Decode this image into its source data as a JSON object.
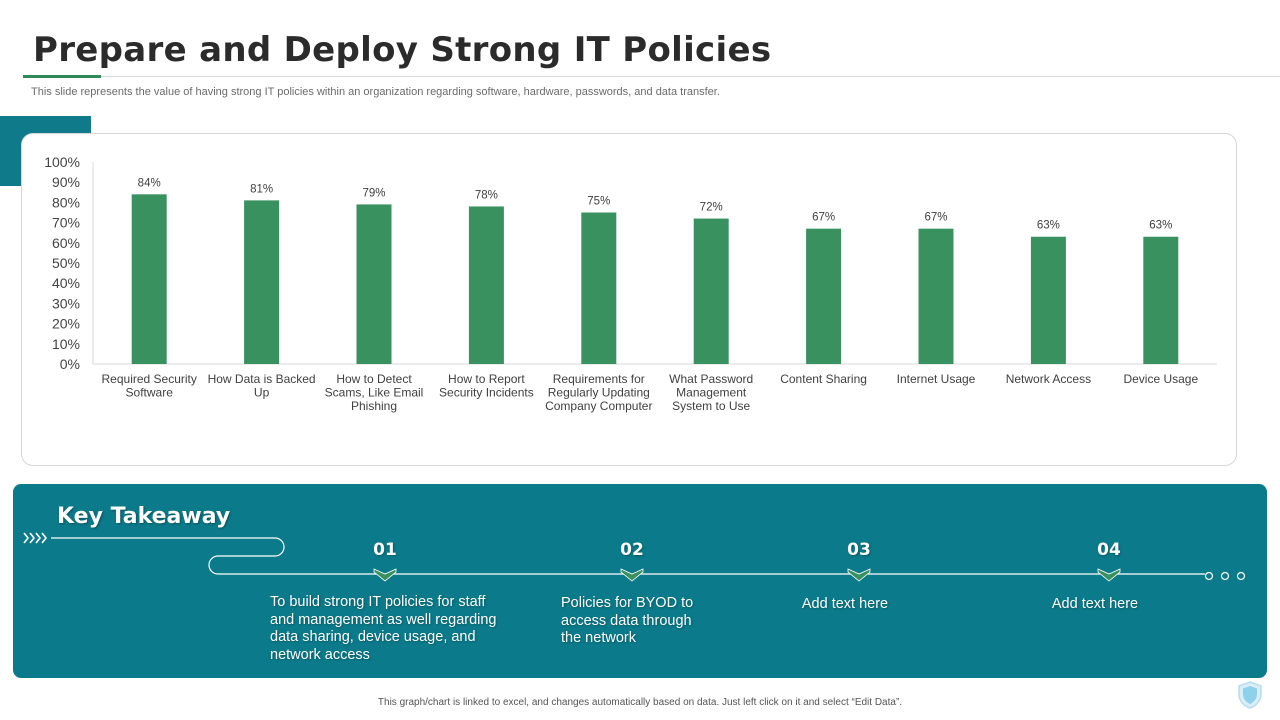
{
  "header": {
    "title": "Prepare and Deploy Strong IT Policies",
    "subtitle": "This slide represents the value of having strong IT policies within an organization regarding software, hardware, passwords, and data transfer."
  },
  "chart_data": {
    "type": "bar",
    "title": "",
    "xlabel": "",
    "ylabel": "",
    "ylim": [
      0,
      100
    ],
    "yticks": [
      "0%",
      "10%",
      "20%",
      "30%",
      "40%",
      "50%",
      "60%",
      "70%",
      "80%",
      "90%",
      "100%"
    ],
    "categories": [
      [
        "Required Security",
        "Software"
      ],
      [
        "How Data is Backed",
        "Up"
      ],
      [
        "How to Detect",
        "Scams, Like Email",
        "Phishing"
      ],
      [
        "How to Report",
        "Security Incidents"
      ],
      [
        "Requirements for",
        "Regularly Updating",
        "Company Computer"
      ],
      [
        "What Password",
        "Management",
        "System to Use"
      ],
      [
        "Content Sharing"
      ],
      [
        "Internet Usage"
      ],
      [
        "Network Access"
      ],
      [
        "Device Usage"
      ]
    ],
    "values": [
      84,
      81,
      79,
      78,
      75,
      72,
      67,
      67,
      63,
      63
    ],
    "value_labels": [
      "84%",
      "81%",
      "79%",
      "78%",
      "75%",
      "72%",
      "67%",
      "67%",
      "63%",
      "63%"
    ],
    "bar_color": "#3a9160",
    "grid": false
  },
  "takeaway": {
    "title": "Key Takeaway",
    "steps": [
      {
        "number": "01",
        "text": "To build strong IT policies for staff and management as well regarding data sharing, device usage, and network access"
      },
      {
        "number": "02",
        "text": "Policies for BYOD to access data through the network"
      },
      {
        "number": "03",
        "text": "Add text here"
      },
      {
        "number": "04",
        "text": "Add text here"
      }
    ],
    "arrows_icon": "chevron-arrows-icon"
  },
  "footer": {
    "note": "This graph/chart is linked to excel, and changes automatically based on data. Just left click on it and select “Edit Data”."
  },
  "colors": {
    "accent_green": "#2e8b57",
    "teal": "#0b7b8b"
  }
}
